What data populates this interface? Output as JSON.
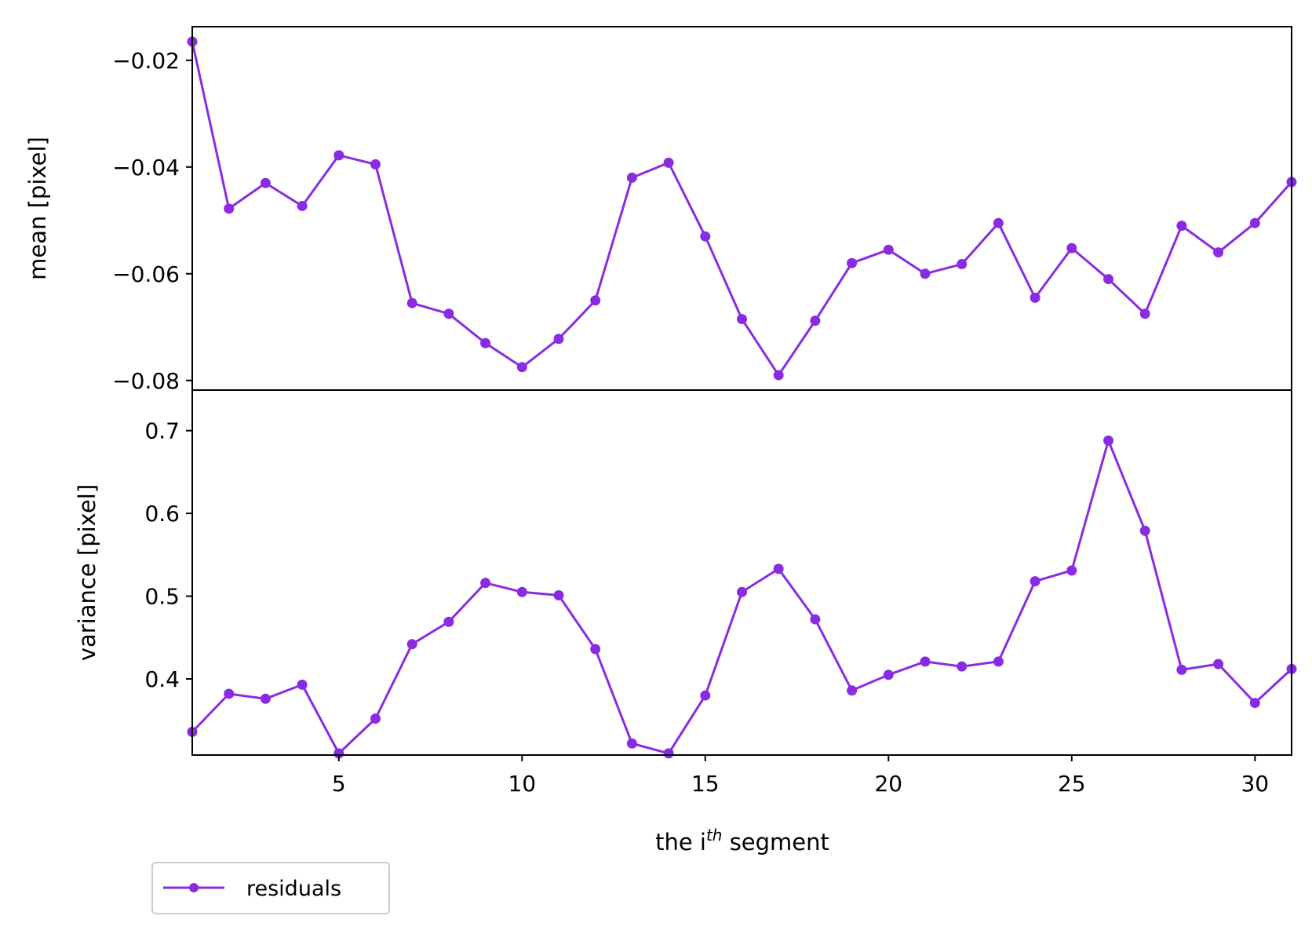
{
  "chart_data": {
    "type": "line",
    "x": [
      1,
      2,
      3,
      4,
      5,
      6,
      7,
      8,
      9,
      10,
      11,
      12,
      13,
      14,
      15,
      16,
      17,
      18,
      19,
      20,
      21,
      22,
      23,
      24,
      25,
      26,
      27,
      28,
      29,
      30,
      31
    ],
    "xlim": [
      1,
      31
    ],
    "xticks": [
      5,
      10,
      15,
      20,
      25,
      30
    ],
    "xlabel": {
      "prefix": "the i",
      "sup": "th",
      "suffix": " segment"
    },
    "panels": [
      {
        "ylabel": "mean [pixel]",
        "ylim": [
          -0.0818,
          -0.0137
        ],
        "yticks": [
          -0.02,
          -0.04,
          -0.06,
          -0.08
        ],
        "ytick_labels": [
          "−0.02",
          "−0.04",
          "−0.06",
          "−0.08"
        ],
        "series": [
          {
            "name": "residuals",
            "values": [
              -0.0165,
              -0.0478,
              -0.043,
              -0.0473,
              -0.0378,
              -0.0395,
              -0.0655,
              -0.0675,
              -0.073,
              -0.0775,
              -0.0722,
              -0.065,
              -0.042,
              -0.0392,
              -0.053,
              -0.0685,
              -0.079,
              -0.0688,
              -0.058,
              -0.0555,
              -0.06,
              -0.0582,
              -0.0505,
              -0.0645,
              -0.0552,
              -0.061,
              -0.0675,
              -0.051,
              -0.056,
              -0.0505,
              -0.0428
            ]
          }
        ]
      },
      {
        "ylabel": "variance [pixel]",
        "ylim": [
          0.308,
          0.749
        ],
        "yticks": [
          0.4,
          0.5,
          0.6,
          0.7
        ],
        "ytick_labels": [
          "0.4",
          "0.5",
          "0.6",
          "0.7"
        ],
        "series": [
          {
            "name": "residuals",
            "values": [
              0.336,
              0.382,
              0.376,
              0.393,
              0.31,
              0.352,
              0.442,
              0.469,
              0.516,
              0.505,
              0.501,
              0.436,
              0.322,
              0.31,
              0.38,
              0.505,
              0.533,
              0.472,
              0.386,
              0.405,
              0.421,
              0.415,
              0.421,
              0.518,
              0.531,
              0.688,
              0.579,
              0.411,
              0.418,
              0.371,
              0.412
            ]
          }
        ]
      }
    ],
    "color": "#8a2be2",
    "legend": {
      "placement": "below-left",
      "label": "residuals"
    },
    "grid": false
  }
}
